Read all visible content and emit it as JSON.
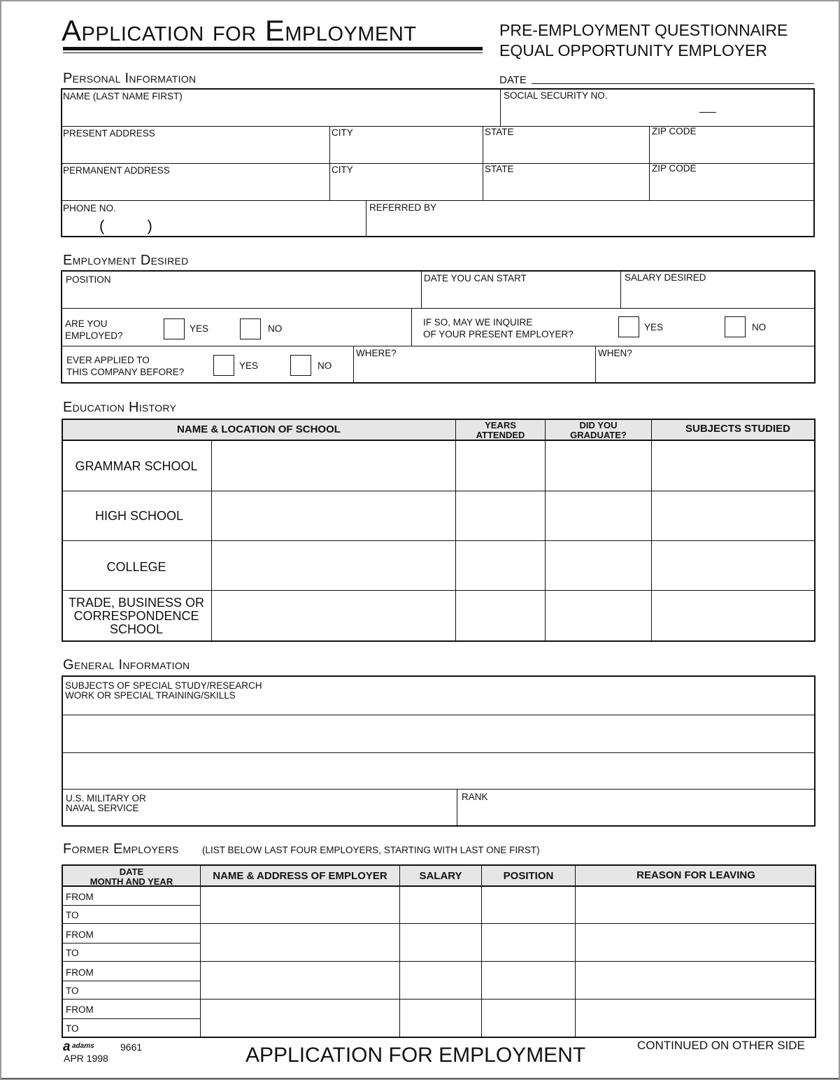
{
  "header": {
    "title": "Application for Employment",
    "subtitle1": "PRE-EMPLOYMENT QUESTIONNAIRE",
    "subtitle2": "EQUAL OPPORTUNITY EMPLOYER"
  },
  "personal": {
    "heading": "Personal Information",
    "date": "DATE",
    "name": "NAME (LAST NAME FIRST)",
    "ssn": "SOCIAL SECURITY NO.",
    "present_address": "PRESENT ADDRESS",
    "permanent_address": "PERMANENT ADDRESS",
    "city": "CITY",
    "state": "STATE",
    "zip": "ZIP CODE",
    "phone": "PHONE NO.",
    "phone_parens": "(          )",
    "referred_by": "REFERRED BY"
  },
  "employment": {
    "heading": "Employment Desired",
    "position": "POSITION",
    "start": "DATE YOU CAN START",
    "salary": "SALARY DESIRED",
    "employed": "ARE YOU\nEMPLOYED?",
    "inquire": "IF SO, MAY WE INQUIRE\nOF YOUR PRESENT EMPLOYER?",
    "applied": "EVER APPLIED TO\nTHIS COMPANY BEFORE?",
    "where": "WHERE?",
    "when": "WHEN?",
    "yes": "YES",
    "no": "NO"
  },
  "education": {
    "heading": "Education History",
    "columns": [
      "NAME & LOCATION OF SCHOOL",
      "YEARS\nATTENDED",
      "DID YOU\nGRADUATE?",
      "SUBJECTS STUDIED"
    ],
    "rows": [
      "GRAMMAR SCHOOL",
      "HIGH SCHOOL",
      "COLLEGE",
      "TRADE, BUSINESS OR\nCORRESPONDENCE\nSCHOOL"
    ]
  },
  "general": {
    "heading": "General Information",
    "special": "SUBJECTS OF SPECIAL STUDY/RESEARCH\nWORK OR SPECIAL TRAINING/SKILLS",
    "military": "U.S. MILITARY OR\nNAVAL SERVICE",
    "rank": "RANK"
  },
  "former": {
    "heading": "Former Employers",
    "note": "(LIST BELOW LAST FOUR EMPLOYERS, STARTING WITH LAST ONE FIRST)",
    "columns": [
      "DATE\nMONTH AND YEAR",
      "NAME & ADDRESS OF EMPLOYER",
      "SALARY",
      "POSITION",
      "REASON FOR LEAVING"
    ],
    "from": "FROM",
    "to": "TO"
  },
  "footer": {
    "brand": "adams",
    "form_no": "9661",
    "date": "APR 1998",
    "title": "APPLICATION FOR EMPLOYMENT",
    "continued": "CONTINUED ON OTHER SIDE"
  }
}
